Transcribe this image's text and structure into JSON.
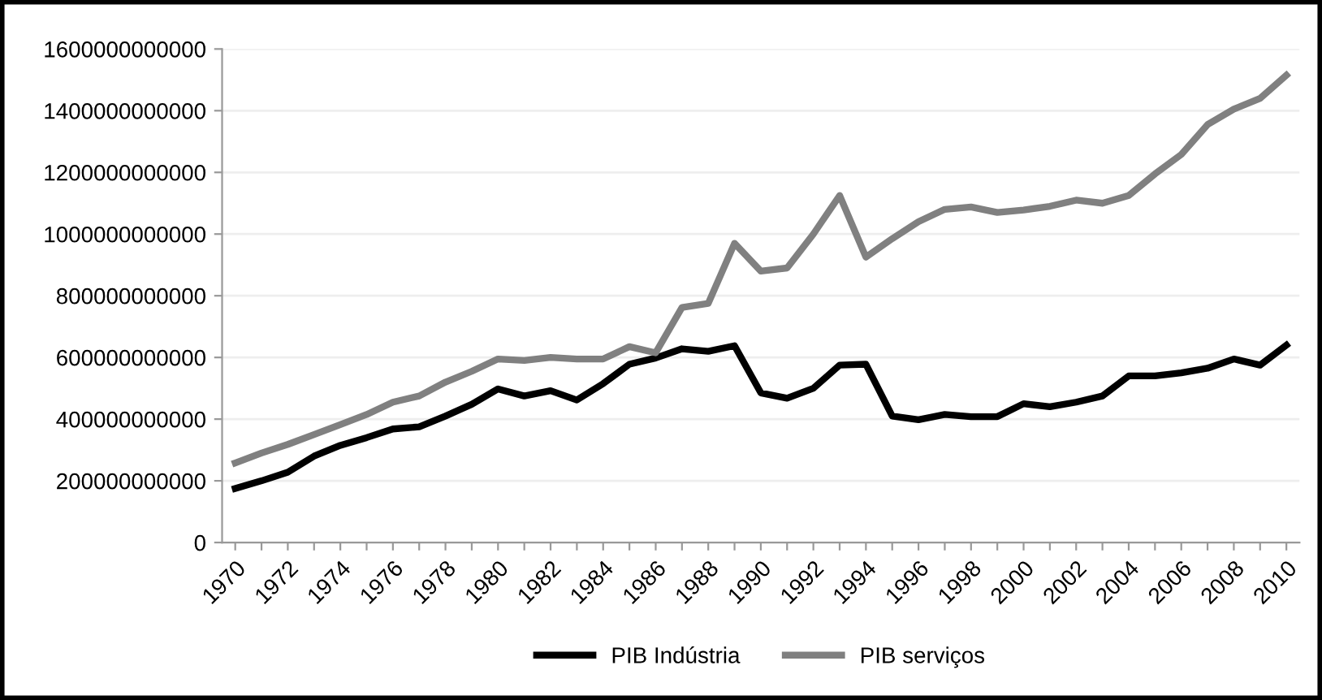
{
  "chart_data": {
    "type": "line",
    "categories": [
      "1970",
      null,
      "1972",
      null,
      "1974",
      null,
      "1976",
      null,
      "1978",
      null,
      "1980",
      null,
      "1982",
      null,
      "1984",
      null,
      "1986",
      null,
      "1988",
      null,
      "1990",
      null,
      "1992",
      null,
      "1994",
      null,
      "1996",
      null,
      "1998",
      null,
      "2000",
      null,
      "2002",
      null,
      "2004",
      null,
      "2006",
      null,
      "2008",
      null,
      "2010"
    ],
    "series": [
      {
        "name": "PIB Indústria",
        "color": "#000000",
        "values": [
          175000000000,
          200000000000,
          228000000000,
          280000000000,
          315000000000,
          340000000000,
          368000000000,
          375000000000,
          410000000000,
          448000000000,
          498000000000,
          475000000000,
          492000000000,
          462000000000,
          515000000000,
          578000000000,
          598000000000,
          628000000000,
          620000000000,
          638000000000,
          485000000000,
          468000000000,
          500000000000,
          575000000000,
          578000000000,
          410000000000,
          398000000000,
          415000000000,
          408000000000,
          408000000000,
          450000000000,
          440000000000,
          455000000000,
          475000000000,
          540000000000,
          540000000000,
          550000000000,
          565000000000,
          595000000000,
          575000000000,
          640000000000
        ]
      },
      {
        "name": "PIB serviços",
        "color": "#808080",
        "values": [
          258000000000,
          290000000000,
          318000000000,
          350000000000,
          382000000000,
          415000000000,
          455000000000,
          475000000000,
          520000000000,
          555000000000,
          595000000000,
          590000000000,
          600000000000,
          595000000000,
          595000000000,
          635000000000,
          615000000000,
          762000000000,
          775000000000,
          970000000000,
          880000000000,
          890000000000,
          1000000000000,
          1125000000000,
          925000000000,
          985000000000,
          1040000000000,
          1080000000000,
          1088000000000,
          1070000000000,
          1078000000000,
          1090000000000,
          1110000000000,
          1100000000000,
          1125000000000,
          1195000000000,
          1258000000000,
          1355000000000,
          1405000000000,
          1440000000000,
          1515000000000
        ]
      }
    ],
    "ylim": [
      0,
      1600000000000
    ],
    "yticks": [
      0,
      200000000000,
      400000000000,
      600000000000,
      800000000000,
      1000000000000,
      1200000000000,
      1400000000000,
      1600000000000
    ],
    "grid": "y",
    "legend": "bottom",
    "marker": "none",
    "line_style": "solid"
  }
}
